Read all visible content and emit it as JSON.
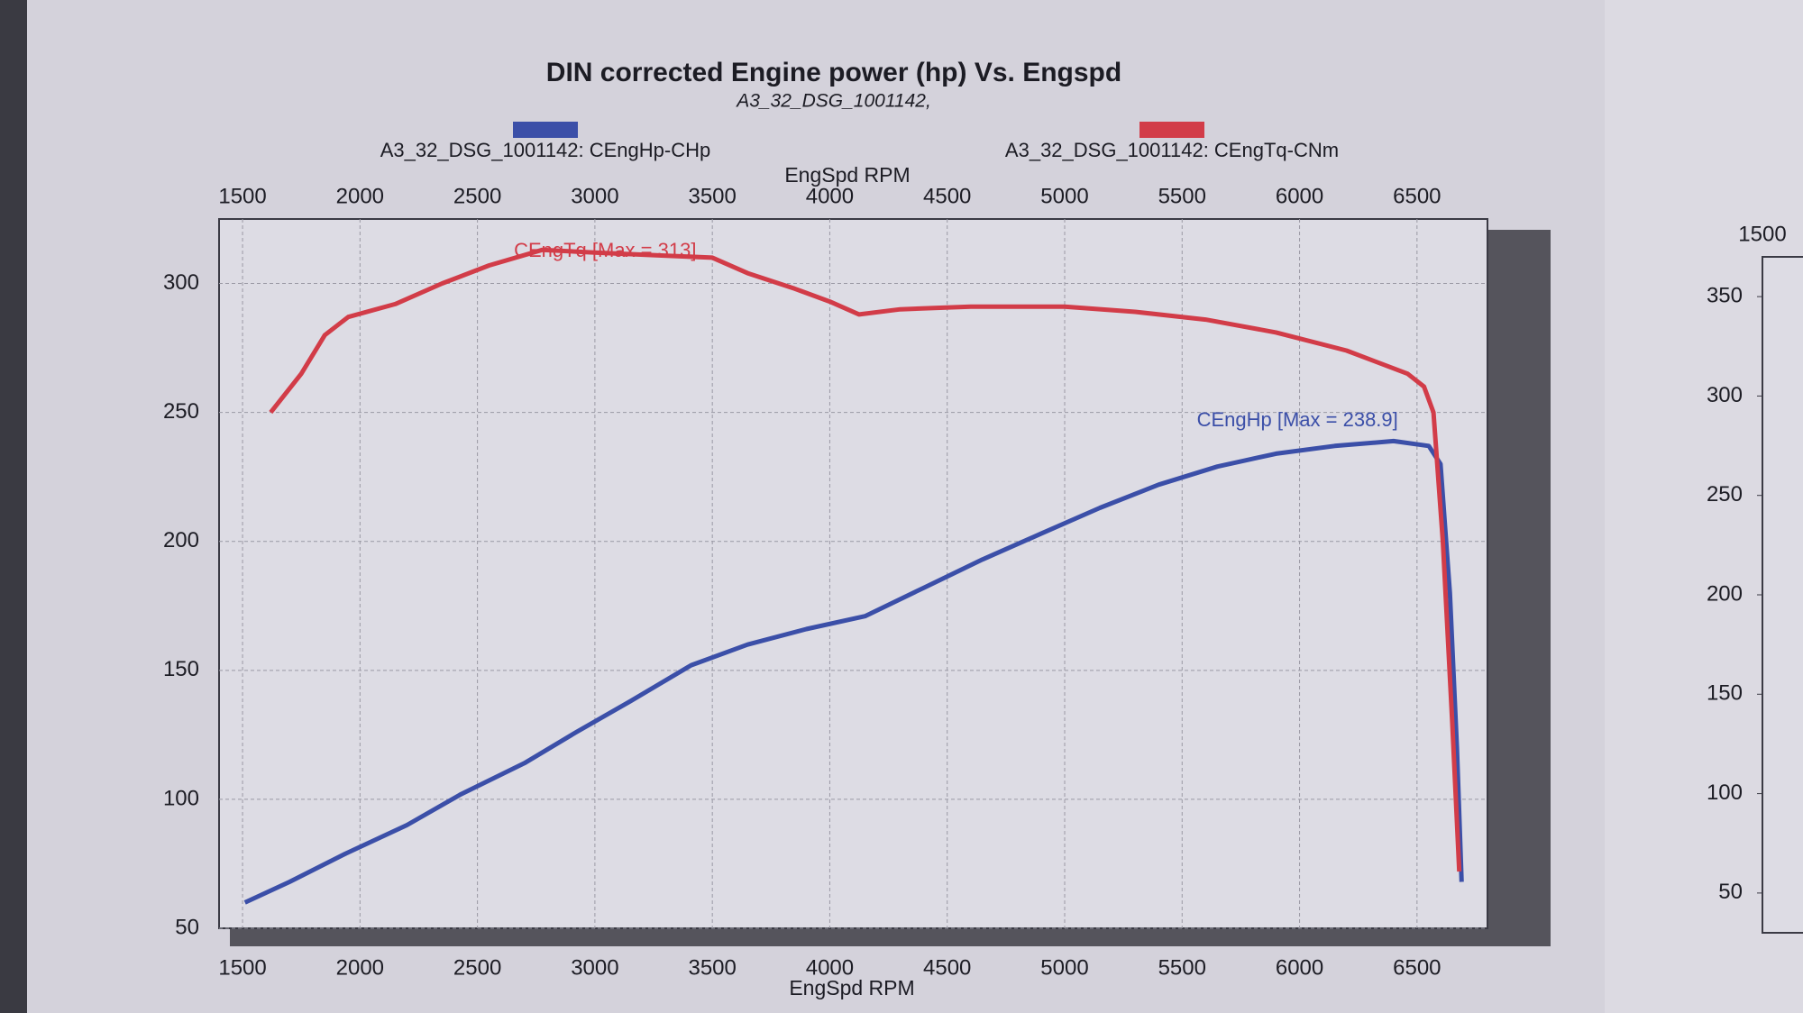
{
  "chart_data": [
    {
      "type": "line",
      "title": "DIN corrected Engine power (hp) Vs. Engspd",
      "subtitle": "A3_32_DSG_1001142,",
      "xlabel": "EngSpd RPM",
      "xlim": [
        1400,
        6800
      ],
      "xticks": [
        1500,
        2000,
        2500,
        3000,
        3500,
        4000,
        4500,
        5000,
        5500,
        6000,
        6500
      ],
      "ylim": [
        50,
        325
      ],
      "yticks": [
        50,
        100,
        150,
        200,
        250,
        300
      ],
      "grid": true,
      "series": [
        {
          "name": "A3_32_DSG_1001142: CEngHp-CHp",
          "color": "#3b4fa8",
          "x": [
            1510,
            1700,
            1940,
            2200,
            2430,
            2700,
            2920,
            3150,
            3410,
            3650,
            3900,
            4150,
            4400,
            4650,
            4900,
            5150,
            5400,
            5650,
            5900,
            6150,
            6400,
            6550,
            6600,
            6640,
            6670,
            6690
          ],
          "values": [
            60,
            68,
            79,
            90,
            102,
            114,
            126,
            138,
            152,
            160,
            166,
            171,
            182,
            193,
            203,
            213,
            222,
            229,
            234,
            237,
            238.9,
            237,
            230,
            180,
            120,
            68
          ]
        },
        {
          "name": "A3_32_DSG_1001142: CEngTq-CNm",
          "color": "#d23c48",
          "x": [
            1620,
            1750,
            1850,
            1950,
            2150,
            2350,
            2550,
            2775,
            3000,
            3250,
            3500,
            3650,
            3850,
            4000,
            4125,
            4300,
            4600,
            5000,
            5300,
            5600,
            5900,
            6200,
            6460,
            6530,
            6570,
            6610,
            6650,
            6680
          ],
          "values": [
            250,
            265,
            280,
            287,
            292,
            300,
            307,
            313,
            312,
            311,
            310,
            304,
            298,
            293,
            288,
            290,
            291,
            291,
            289,
            286,
            281,
            274,
            265,
            260,
            250,
            200,
            130,
            72
          ]
        }
      ],
      "annotations": [
        "CEngHp [Max = 238.9]",
        "CEngTq [Max = 313]"
      ]
    },
    {
      "type": "line",
      "xlim": [
        1500,
        7000
      ],
      "xticks": [
        1500
      ],
      "ylim": [
        30,
        370
      ],
      "yticks": [
        50,
        100,
        150,
        200,
        250,
        300,
        350
      ]
    }
  ]
}
